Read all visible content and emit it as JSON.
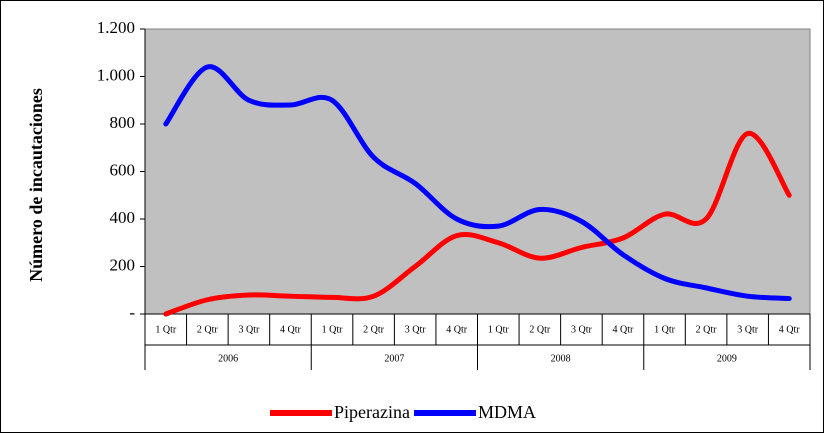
{
  "chart_data": {
    "type": "line",
    "y_label": "Número de incautaciones",
    "categories": [
      "1 Qtr",
      "2 Qtr",
      "3 Qtr",
      "4 Qtr",
      "1 Qtr",
      "2 Qtr",
      "3 Qtr",
      "4 Qtr",
      "1 Qtr",
      "2 Qtr",
      "3 Qtr",
      "4 Qtr",
      "1 Qtr",
      "2 Qtr",
      "3 Qtr",
      "4 Qtr"
    ],
    "category_groups": [
      "2006",
      "2007",
      "2008",
      "2009"
    ],
    "series": [
      {
        "name": "Piperazina",
        "color": "#ff0000",
        "values": [
          0,
          60,
          80,
          75,
          70,
          75,
          200,
          330,
          300,
          235,
          280,
          320,
          420,
          400,
          760,
          500
        ]
      },
      {
        "name": "MDMA",
        "color": "#0000ff",
        "values": [
          800,
          1040,
          900,
          880,
          900,
          660,
          550,
          400,
          370,
          440,
          390,
          250,
          150,
          110,
          75,
          65
        ]
      }
    ],
    "ylim": [
      0,
      1200
    ],
    "yticks": [
      {
        "value": 0,
        "label": "-"
      },
      200,
      400,
      600,
      800,
      {
        "value": 1000,
        "label": "1.000"
      },
      {
        "value": 1200,
        "label": "1.200"
      }
    ],
    "plot_background": "#c0c0c0",
    "legend": "bottom"
  }
}
